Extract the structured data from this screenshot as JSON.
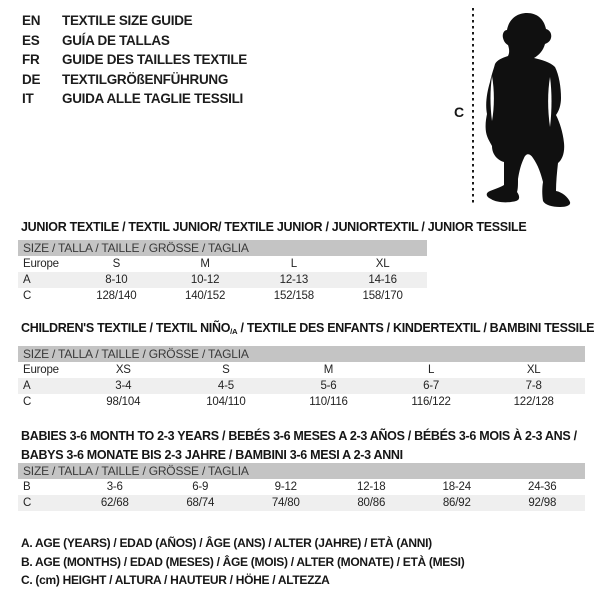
{
  "colors": {
    "header_bar": "#c4c4c4",
    "row_alt": "#efefef",
    "text": "#1c1c1c",
    "silhouette": "#101010"
  },
  "languages": [
    {
      "code": "EN",
      "label": "TEXTILE SIZE GUIDE"
    },
    {
      "code": "ES",
      "label": "GUÍA DE TALLAS"
    },
    {
      "code": "FR",
      "label": "GUIDE DES TAILLES TEXTILE"
    },
    {
      "code": "DE",
      "label": "TEXTILGRÖßENFÜHRUNG"
    },
    {
      "code": "IT",
      "label": "GUIDA ALLE TAGLIE TESSILI"
    }
  ],
  "figure": {
    "icon": "toddler-silhouette",
    "measure_label": "C"
  },
  "tables": [
    {
      "name": "junior",
      "title_lines": [
        [
          {
            "text": "JUNIOR TEXTILE / TEXTIL JUNIOR/ TEXTILE JUNIOR / JUNIORTEXTIL / JUNIOR TESSILE"
          }
        ]
      ],
      "size_header": "SIZE / TALLA / TAILLE / GRÖSSE / TAGLIA",
      "rows": [
        {
          "label": "Europe",
          "values": [
            "S",
            "M",
            "L",
            "XL"
          ],
          "shaded": false
        },
        {
          "label": "A",
          "values": [
            "8-10",
            "10-12",
            "12-13",
            "14-16"
          ],
          "shaded": true
        },
        {
          "label": "C",
          "values": [
            "128/140",
            "140/152",
            "152/158",
            "158/170"
          ],
          "shaded": false
        }
      ]
    },
    {
      "name": "children",
      "title_lines": [
        [
          {
            "text": "CHILDREN'S TEXTILE / TEXTIL NIÑO"
          },
          {
            "text": "/A",
            "sub": true
          },
          {
            "text": " / TEXTILE DES ENFANTS / KINDERTEXTIL / BAMBINI TESSILE"
          }
        ]
      ],
      "size_header": "SIZE / TALLA / TAILLE / GRÖSSE / TAGLIA",
      "rows": [
        {
          "label": "Europe",
          "values": [
            "XS",
            "S",
            "M",
            "L",
            "XL"
          ],
          "shaded": false
        },
        {
          "label": "A",
          "values": [
            "3-4",
            "4-5",
            "5-6",
            "6-7",
            "7-8"
          ],
          "shaded": true
        },
        {
          "label": "C",
          "values": [
            "98/104",
            "104/110",
            "110/116",
            "116/122",
            "122/128"
          ],
          "shaded": false
        }
      ]
    },
    {
      "name": "babies",
      "title_lines": [
        [
          {
            "text": "BABIES 3-6 MONTH TO 2-3 YEARS / BEBÉS 3-6 MESES A 2-3 AÑOS / BÉBÉS 3-6 MOIS À 2-3 ANS /"
          }
        ],
        [
          {
            "text": "BABYS 3-6 MONATE BIS 2-3 JAHRE / BAMBINI 3-6 MESI A 2-3 ANNI"
          }
        ]
      ],
      "size_header": "SIZE / TALLA / TAILLE / GRÖSSE / TAGLIA",
      "rows": [
        {
          "label": "B",
          "values": [
            "3-6",
            "6-9",
            "9-12",
            "12-18",
            "18-24",
            "24-36"
          ],
          "shaded": false
        },
        {
          "label": "C",
          "values": [
            "62/68",
            "68/74",
            "74/80",
            "80/86",
            "86/92",
            "92/98"
          ],
          "shaded": true
        }
      ]
    }
  ],
  "legend": {
    "lines": [
      "A. AGE (YEARS) / EDAD (AÑOS) / ÂGE (ANS) / ALTER (JAHRE) / ETÀ (ANNI)",
      "B. AGE (MONTHS) / EDAD (MESES) / ÂGE (MOIS) / ALTER (MONATE) / ETÀ (MESI)",
      "C. (cm) HEIGHT / ALTURA / HAUTEUR / HÖHE / ALTEZZA"
    ]
  }
}
